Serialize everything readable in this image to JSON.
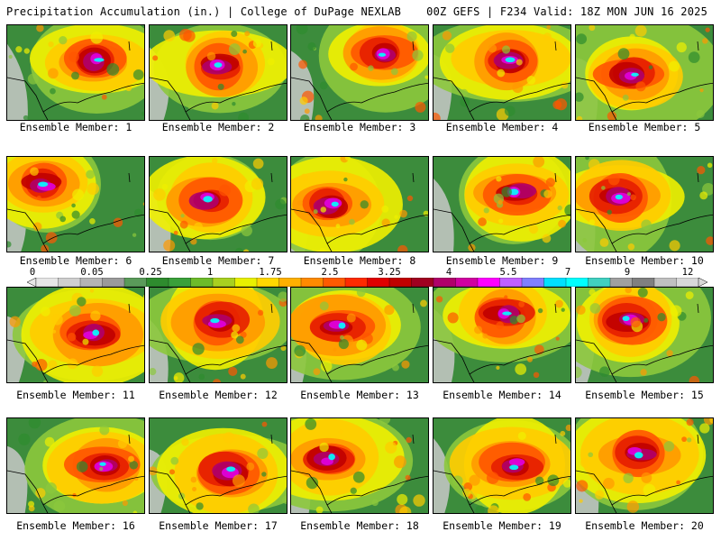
{
  "header": {
    "left": "Precipitation Accumulation (in.) | College of DuPage NEXLAB",
    "right": "00Z GEFS | F234 Valid: 18Z MON JUN 16 2025"
  },
  "panels": [
    {
      "label": "Ensemble Member: 1"
    },
    {
      "label": "Ensemble Member: 2"
    },
    {
      "label": "Ensemble Member: 3"
    },
    {
      "label": "Ensemble Member: 4"
    },
    {
      "label": "Ensemble Member: 5"
    },
    {
      "label": "Ensemble Member: 6"
    },
    {
      "label": "Ensemble Member: 7"
    },
    {
      "label": "Ensemble Member: 8"
    },
    {
      "label": "Ensemble Member: 9"
    },
    {
      "label": "Ensemble Member: 10"
    },
    {
      "label": "Ensemble Member: 11"
    },
    {
      "label": "Ensemble Member: 12"
    },
    {
      "label": "Ensemble Member: 13"
    },
    {
      "label": "Ensemble Member: 14"
    },
    {
      "label": "Ensemble Member: 15"
    },
    {
      "label": "Ensemble Member: 16"
    },
    {
      "label": "Ensemble Member: 17"
    },
    {
      "label": "Ensemble Member: 18"
    },
    {
      "label": "Ensemble Member: 19"
    },
    {
      "label": "Ensemble Member: 20"
    }
  ],
  "colorbar": {
    "tick_labels": [
      "0",
      "0.05",
      "0.25",
      "1",
      "1.75",
      "2.5",
      "3.25",
      "4",
      "5.5",
      "7",
      "9",
      "12"
    ],
    "colors": [
      "#e6e6e6",
      "#cfcfcf",
      "#b4b4b4",
      "#9a9a9a",
      "#5a9a5a",
      "#2e8b2e",
      "#3aa03a",
      "#6dbb2a",
      "#a8d020",
      "#e8f000",
      "#ffd700",
      "#ffb000",
      "#ff8a00",
      "#ff5a00",
      "#ff2a00",
      "#e00000",
      "#c00000",
      "#a00020",
      "#b0006a",
      "#d000a0",
      "#ff00ff",
      "#c060ff",
      "#8080ff",
      "#00e0ff",
      "#00ffff",
      "#40d0c0",
      "#a0a0a0",
      "#808080",
      "#c0c0c0",
      "#d8d8d8"
    ]
  }
}
